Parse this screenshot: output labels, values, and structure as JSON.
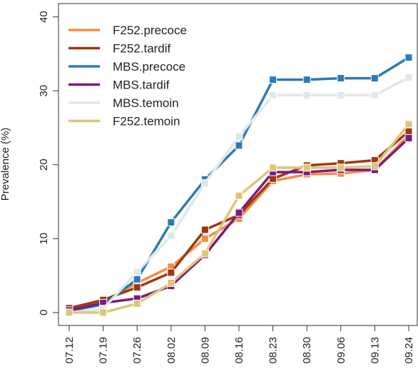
{
  "chart_data": {
    "type": "line",
    "y_label": "Prevalence (%)",
    "categories": [
      "07.12",
      "07.19",
      "07.26",
      "08.02",
      "08.09",
      "08.16",
      "08.23",
      "08.30",
      "09.06",
      "09.13",
      "09.24"
    ],
    "series": [
      {
        "name": "F252.precoce",
        "color": "#f58d42",
        "values": [
          0.5,
          1.5,
          4.0,
          6.2,
          10.0,
          12.7,
          17.8,
          18.7,
          18.8,
          19.3,
          24.0
        ]
      },
      {
        "name": "F252.tardif",
        "color": "#a0380f",
        "values": [
          0.6,
          1.7,
          3.4,
          5.4,
          11.2,
          13.2,
          18.1,
          19.9,
          20.2,
          20.6,
          24.5
        ]
      },
      {
        "name": "MBS.precoce",
        "color": "#2b7bb9",
        "values": [
          0.2,
          1.1,
          4.5,
          12.2,
          18.0,
          22.6,
          31.5,
          31.5,
          31.7,
          31.7,
          34.5
        ]
      },
      {
        "name": "MBS.tardif",
        "color": "#7d1a80",
        "values": [
          0.3,
          1.3,
          1.9,
          3.6,
          7.8,
          13.5,
          19.0,
          19.0,
          19.3,
          19.3,
          23.6
        ]
      },
      {
        "name": "MBS.temoin",
        "color": "#dde9e7",
        "values": [
          0.0,
          0.5,
          5.5,
          10.4,
          17.5,
          23.8,
          29.4,
          29.4,
          29.4,
          29.4,
          31.8
        ]
      },
      {
        "name": "F252.temoin",
        "color": "#dfc57a",
        "values": [
          0.0,
          0.0,
          1.2,
          4.0,
          8.0,
          15.8,
          19.6,
          19.6,
          19.6,
          19.8,
          25.5
        ]
      }
    ],
    "ylim": [
      -1.75,
      41.8
    ],
    "yticks": [
      0,
      10,
      20,
      30,
      40
    ],
    "legend": "top-left"
  }
}
